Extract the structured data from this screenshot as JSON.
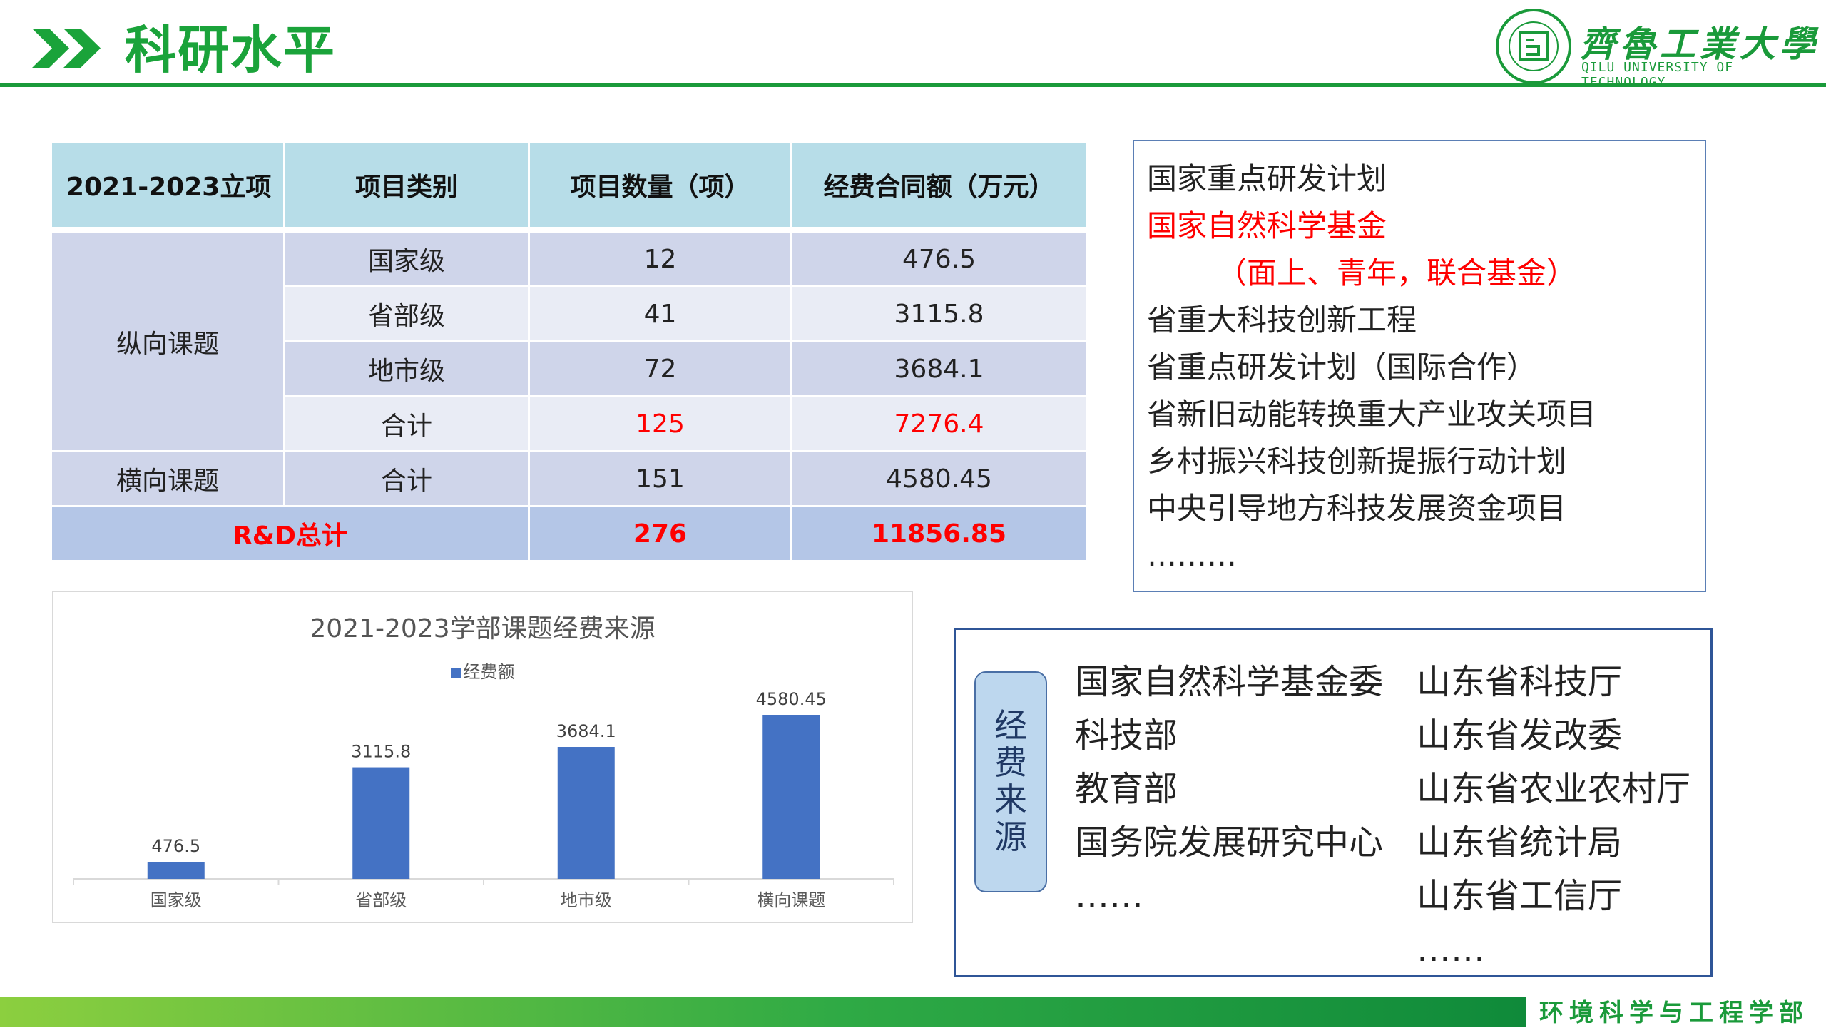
{
  "header": {
    "title": "科研水平",
    "logo_cn": "齊魯工業大學",
    "logo_en": "QILU UNIVERSITY OF TECHNOLOGY",
    "accent_color": "#1aa33a"
  },
  "table": {
    "headers": [
      "2021-2023立项",
      "项目类别",
      "项目数量（项）",
      "经费合同额（万元）"
    ],
    "vertical_group": "纵向课题",
    "vertical_rows": [
      {
        "category": "国家级",
        "count": "12",
        "amount": "476.5"
      },
      {
        "category": "省部级",
        "count": "41",
        "amount": "3115.8"
      },
      {
        "category": "地市级",
        "count": "72",
        "amount": "3684.1"
      },
      {
        "category": "合计",
        "count": "125",
        "amount": "7276.4"
      }
    ],
    "horizontal_group": "横向课题",
    "horizontal_row": {
      "category": "合计",
      "count": "151",
      "amount": "4580.45"
    },
    "total_row": {
      "label": "R&D总计",
      "count": "276",
      "amount": "11856.85"
    }
  },
  "programs": {
    "items": [
      "国家重点研发计划",
      "国家自然科学基金",
      "（面上、青年，联合基金）",
      "省重大科技创新工程",
      "省重点研发计划（国际合作）",
      "省新旧动能转换重大产业攻关项目",
      "乡村振兴科技创新提振行动计划",
      "中央引导地方科技发展资金项目",
      "………"
    ]
  },
  "chart_data": {
    "type": "bar",
    "title": "2021-2023学部课题经费来源",
    "legend": [
      "经费额"
    ],
    "categories": [
      "国家级",
      "省部级",
      "地市级",
      "横向课题"
    ],
    "series": [
      {
        "name": "经费额",
        "values": [
          476.5,
          3115.8,
          3684.1,
          4580.45
        ]
      }
    ],
    "data_labels": [
      "476.5",
      "3115.8",
      "3684.1",
      "4580.45"
    ],
    "ylim": [
      0,
      5000
    ],
    "grid": false,
    "legend_position": "top",
    "bar_color": "#4472c4"
  },
  "sources": {
    "label": [
      "经",
      "费",
      "来",
      "源"
    ],
    "left": [
      "国家自然科学基金委",
      "科技部",
      "教育部",
      "国务院发展研究中心",
      "……"
    ],
    "right": [
      "山东省科技厅",
      "山东省发改委",
      "山东省农业农村厅",
      "山东省统计局",
      "山东省工信厅",
      "……"
    ]
  },
  "footer": {
    "text": "环境科学与工程学部"
  }
}
